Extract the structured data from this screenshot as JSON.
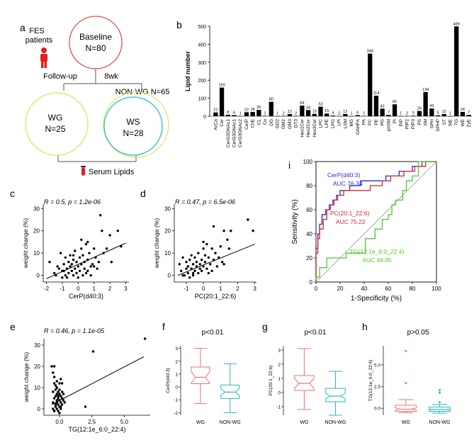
{
  "panels": {
    "a": {
      "letter": "a",
      "patients": [
        "FES",
        "patients"
      ],
      "baseline": {
        "title": "Baseline",
        "n": "N=80"
      },
      "followup": "Follow-up",
      "duration": "8wk",
      "nonwg": "NON-WG N=65",
      "wg": {
        "title": "WG",
        "n": "N=25"
      },
      "ws": {
        "title": "WS",
        "n": "N=28"
      },
      "serum": "Serum Lipids"
    },
    "b": {
      "letter": "b"
    },
    "c": {
      "letter": "c",
      "stats": "R = 0.5, p = 1.2e-06"
    },
    "d": {
      "letter": "d",
      "stats": "R = 0.47, p = 6.5e-06"
    },
    "e": {
      "letter": "e",
      "stats": "R = 0.46, p = 1.1e-05"
    },
    "f": {
      "letter": "f",
      "p": "p<0.01"
    },
    "g": {
      "letter": "g",
      "p": "p<0.01"
    },
    "h": {
      "letter": "h",
      "p": "p>0.05"
    },
    "i": {
      "letter": "i"
    }
  },
  "colors": {
    "wg": "#e8756f",
    "nonwg": "#27b9c0",
    "cerp": "#2b2bd0",
    "pc": "#d42b2b",
    "tg": "#4bcc2b",
    "baseline": "#e05050",
    "wgcircle": "#e4e470",
    "wscircle": "#45c6c6"
  },
  "chart_data": [
    {
      "id": "b",
      "type": "bar",
      "title": "",
      "ylabel": "Lipid number",
      "ylim": [
        0,
        500
      ],
      "yticks": [
        0,
        100,
        200,
        300,
        400,
        500
      ],
      "categories": [
        "AcCa",
        "Cer",
        "CerG2GNAc1",
        "CerG3GNAc1",
        "CerG3GNAc2",
        "CerP",
        "ChE",
        "CL",
        "Co",
        "DG",
        "GD2",
        "GM2",
        "GM3",
        "GT3",
        "Hex1Cer",
        "Hex2Cer",
        "Hex3Cer",
        "LPC",
        "LPE",
        "LPG",
        "LPI",
        "LSM",
        "MG",
        "OAHFA",
        "PA",
        "PC",
        "PE",
        "PG",
        "phSM",
        "PI",
        "PIP",
        "PIP2",
        "PIP3",
        "PS",
        "SM",
        "SPH",
        "SPHP",
        "ST",
        "StE",
        "TG",
        "WE",
        "ZyE"
      ],
      "values": [
        21,
        159,
        8,
        6,
        1,
        22,
        24,
        35,
        2,
        80,
        1,
        2,
        12,
        2,
        59,
        34,
        13,
        53,
        15,
        4,
        2,
        12,
        1,
        6,
        2,
        348,
        114,
        42,
        7,
        66,
        1,
        2,
        3,
        29,
        134,
        43,
        5,
        12,
        1,
        499,
        24,
        7
      ]
    },
    {
      "id": "c",
      "type": "scatter",
      "xlabel": "CerP(d40:3)",
      "ylabel": "weight change (%)",
      "xlim": [
        -2.2,
        3.2
      ],
      "ylim": [
        -3,
        32
      ],
      "xticks": [
        -2,
        -1,
        0,
        1,
        2,
        3
      ],
      "yticks": [
        0,
        10,
        20,
        30
      ],
      "fit": {
        "x": [
          -2,
          3
        ],
        "y": [
          -1.5,
          14.5
        ]
      },
      "x": [
        -1.8,
        -1.5,
        -1.3,
        -1.2,
        -1.1,
        -1.0,
        -1.0,
        -0.9,
        -0.8,
        -0.8,
        -0.7,
        -0.7,
        -0.6,
        -0.6,
        -0.5,
        -0.5,
        -0.4,
        -0.4,
        -0.3,
        -0.3,
        -0.2,
        -0.2,
        -0.1,
        -0.1,
        0.0,
        0.0,
        0.1,
        0.1,
        0.2,
        0.2,
        0.3,
        0.3,
        0.4,
        0.4,
        0.5,
        0.5,
        0.6,
        0.6,
        0.7,
        0.8,
        0.8,
        0.9,
        1.0,
        1.1,
        1.2,
        1.3,
        1.5,
        1.6,
        1.8,
        2.0,
        2.1,
        2.5,
        2.7,
        -1.4,
        -0.9,
        -0.3,
        0.2,
        0.6,
        1.0,
        1.4
      ],
      "y": [
        6,
        1,
        4,
        3,
        10,
        2,
        -1,
        5,
        0,
        8,
        3,
        -1,
        6,
        1,
        4,
        9,
        2,
        5,
        0,
        7,
        3,
        11,
        1,
        6,
        -1,
        4,
        8,
        2,
        12,
        5,
        0,
        9,
        3,
        6,
        14,
        1,
        7,
        2,
        10,
        4,
        0,
        5,
        12,
        8,
        3,
        6,
        20,
        10,
        12,
        18,
        6,
        20,
        13,
        0,
        2,
        9,
        16,
        15,
        4,
        27
      ]
    },
    {
      "id": "d",
      "type": "scatter",
      "xlabel": "PC(20:1_22:6)",
      "ylabel": "weight change (%)",
      "xlim": [
        -1.7,
        3.1
      ],
      "ylim": [
        -3,
        32
      ],
      "xticks": [
        -1,
        0,
        1,
        2,
        3
      ],
      "yticks": [
        0,
        10,
        20,
        30
      ],
      "fit": {
        "x": [
          -1.5,
          3
        ],
        "y": [
          0,
          14
        ]
      },
      "x": [
        -1.4,
        -1.3,
        -1.2,
        -1.1,
        -1.0,
        -1.0,
        -0.9,
        -0.9,
        -0.8,
        -0.8,
        -0.7,
        -0.7,
        -0.6,
        -0.6,
        -0.5,
        -0.5,
        -0.4,
        -0.4,
        -0.3,
        -0.3,
        -0.2,
        -0.2,
        -0.1,
        -0.1,
        0.0,
        0.0,
        0.1,
        0.1,
        0.2,
        0.2,
        0.3,
        0.3,
        0.4,
        0.5,
        0.5,
        0.6,
        0.7,
        0.8,
        0.9,
        1.0,
        1.1,
        1.2,
        1.4,
        1.5,
        1.6,
        2.6,
        2.9,
        -1.2,
        -0.6,
        0.0,
        0.6,
        1.2
      ],
      "y": [
        5,
        2,
        8,
        0,
        3,
        6,
        1,
        4,
        7,
        -1,
        3,
        9,
        0,
        5,
        2,
        8,
        4,
        6,
        1,
        10,
        3,
        5,
        7,
        2,
        12,
        4,
        6,
        9,
        3,
        14,
        1,
        8,
        5,
        12,
        2,
        7,
        10,
        4,
        8,
        13,
        6,
        20,
        16,
        12,
        20,
        25,
        20,
        0,
        1,
        15,
        22,
        5
      ]
    },
    {
      "id": "e",
      "type": "scatter",
      "xlabel": "TG(12:1e_6:0_22:4)",
      "ylabel": "weight change (%)",
      "xlim": [
        -1.2,
        7.0
      ],
      "ylim": [
        -3,
        33
      ],
      "xticks": [
        0.0,
        2.5,
        5.0
      ],
      "yticks": [
        0,
        10,
        20,
        30
      ],
      "fit": {
        "x": [
          -0.6,
          6.5
        ],
        "y": [
          2,
          24.5
        ]
      },
      "x": [
        -0.6,
        -0.5,
        -0.5,
        -0.5,
        -0.4,
        -0.4,
        -0.4,
        -0.4,
        -0.3,
        -0.3,
        -0.3,
        -0.3,
        -0.3,
        -0.2,
        -0.2,
        -0.2,
        -0.2,
        -0.2,
        -0.2,
        -0.1,
        -0.1,
        -0.1,
        -0.1,
        -0.1,
        0.0,
        0.0,
        0.0,
        0.0,
        0.1,
        0.1,
        0.1,
        0.1,
        0.2,
        0.2,
        0.2,
        0.3,
        0.3,
        0.4,
        -0.5,
        -0.4,
        -0.3,
        -0.2,
        -0.1,
        0.0,
        0.1,
        0.2,
        -0.4,
        -0.2,
        0.0,
        2.0,
        2.6,
        6.6
      ],
      "y": [
        20,
        3,
        8,
        0,
        12,
        5,
        -1,
        15,
        2,
        6,
        9,
        1,
        11,
        4,
        7,
        0,
        13,
        3,
        10,
        5,
        2,
        8,
        -1,
        6,
        4,
        9,
        1,
        12,
        3,
        6,
        0,
        14,
        5,
        2,
        8,
        4,
        7,
        3,
        17,
        20,
        2,
        10,
        6,
        -2,
        1,
        12,
        -1,
        4,
        7,
        1,
        27,
        33
      ]
    },
    {
      "id": "f",
      "type": "box",
      "title": "p<0.01",
      "ylabel": "CerP(d40:3)",
      "categories": [
        "WG",
        "NON-WG"
      ],
      "ylim": [
        -2.2,
        3.2
      ],
      "yticks": [
        -2,
        -1,
        0,
        1,
        2,
        3
      ],
      "boxes": [
        {
          "min": -1.3,
          "q1": 0.25,
          "median": 0.75,
          "q3": 1.55,
          "max": 3.0,
          "notch": [
            0.3,
            1.2
          ]
        },
        {
          "min": -2.0,
          "q1": -0.9,
          "median": -0.4,
          "q3": 0.15,
          "max": 1.8,
          "notch": [
            -0.65,
            -0.15
          ]
        }
      ]
    },
    {
      "id": "g",
      "type": "box",
      "title": "p<0.01",
      "ylabel": "PC(20:1_22:6)",
      "categories": [
        "WG",
        "NON-WG"
      ],
      "ylim": [
        -1.6,
        3.3
      ],
      "yticks": [
        -1,
        0,
        1,
        2,
        3
      ],
      "boxes": [
        {
          "min": -1.2,
          "q1": 0.15,
          "median": 0.65,
          "q3": 1.2,
          "max": 3.1,
          "notch": [
            0.3,
            1.0
          ]
        },
        {
          "min": -1.6,
          "q1": -0.65,
          "median": -0.25,
          "q3": 0.3,
          "max": 1.5,
          "notch": [
            -0.45,
            -0.05
          ]
        }
      ]
    },
    {
      "id": "h",
      "type": "box",
      "title": "p>0.05",
      "ylabel": "TG(12:1e_6:0_22:4)",
      "categories": [
        "WG",
        "NON-WG"
      ],
      "ylim": [
        -0.8,
        7.2
      ],
      "yticks": [
        0.0,
        2.5,
        5.0
      ],
      "boxes": [
        {
          "min": -0.5,
          "q1": -0.35,
          "median": -0.1,
          "q3": 0.35,
          "max": 1.0,
          "notch": [
            -0.2,
            0.05
          ],
          "outliers": [
            2.9,
            6.6
          ]
        },
        {
          "min": -0.55,
          "q1": -0.35,
          "median": -0.15,
          "q3": 0.15,
          "max": 0.45,
          "notch": [
            -0.22,
            -0.08
          ],
          "outliers": [
            0.7,
            1.8,
            2.1
          ]
        }
      ]
    },
    {
      "id": "i",
      "type": "line",
      "title": "",
      "xlabel": "1-Specificity (%)",
      "ylabel": "Sensitivity (%)",
      "xlim": [
        0,
        100
      ],
      "ylim": [
        0,
        100
      ],
      "xticks": [
        0,
        20,
        40,
        60,
        80,
        100
      ],
      "yticks": [
        0,
        20,
        40,
        60,
        80,
        100
      ],
      "series": [
        {
          "name": "CerP(d40:3)",
          "auc": "AUC 76.34",
          "x": [
            0,
            0,
            1.5,
            1.5,
            3,
            3,
            5,
            5,
            8,
            8,
            11,
            11,
            14,
            14,
            17,
            17,
            20,
            20,
            28,
            28,
            37,
            37,
            48,
            48,
            58,
            58,
            69,
            69,
            80,
            80,
            88,
            88,
            100
          ],
          "y": [
            0,
            28,
            28,
            40,
            40,
            48,
            48,
            56,
            56,
            60,
            60,
            64,
            64,
            68,
            68,
            72,
            72,
            76,
            76,
            80,
            80,
            84,
            84,
            84,
            84,
            88,
            88,
            92,
            92,
            96,
            96,
            100,
            100
          ]
        },
        {
          "name": "PC(20:1_22:6)",
          "auc": "AUC 75.22",
          "x": [
            0,
            0,
            1.5,
            1.5,
            3,
            3,
            6,
            6,
            9,
            9,
            12,
            12,
            15,
            15,
            18,
            18,
            23,
            23,
            34,
            34,
            45,
            45,
            55,
            55,
            62,
            62,
            73,
            73,
            82,
            82,
            91,
            91,
            100
          ],
          "y": [
            0,
            24,
            24,
            36,
            36,
            44,
            44,
            52,
            52,
            60,
            60,
            64,
            64,
            68,
            68,
            72,
            72,
            76,
            76,
            76,
            76,
            80,
            80,
            84,
            84,
            88,
            88,
            92,
            92,
            96,
            96,
            100,
            100
          ]
        },
        {
          "name": "TG(12:1e_6:0_22:4)",
          "auc": "AUC 49.85",
          "x": [
            0,
            0,
            3,
            3,
            9,
            9,
            17,
            17,
            25,
            25,
            34,
            34,
            41,
            41,
            49,
            49,
            55,
            55,
            60,
            60,
            63,
            63,
            66,
            66,
            72,
            72,
            75,
            75,
            80,
            80,
            85,
            85,
            100
          ],
          "y": [
            0,
            4,
            4,
            12,
            12,
            20,
            20,
            20,
            20,
            24,
            24,
            24,
            24,
            36,
            36,
            44,
            44,
            52,
            52,
            56,
            56,
            64,
            64,
            68,
            68,
            76,
            76,
            84,
            84,
            88,
            88,
            100,
            100
          ]
        }
      ]
    }
  ]
}
